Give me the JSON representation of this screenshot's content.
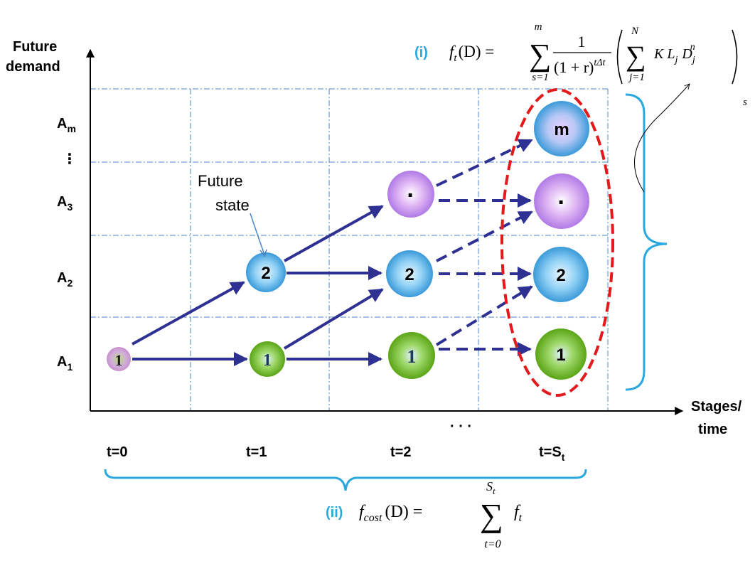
{
  "y_axis": {
    "label_line1": "Future",
    "label_line2": "demand"
  },
  "x_axis": {
    "label_line1": "Stages/",
    "label_line2": "time"
  },
  "demand_levels": [
    {
      "base": "A",
      "sub": "m"
    },
    {
      "dots": "⋮"
    },
    {
      "base": "A",
      "sub": "3"
    },
    {
      "base": "A",
      "sub": "2"
    },
    {
      "base": "A",
      "sub": "1"
    }
  ],
  "stages": [
    {
      "base": "t=0"
    },
    {
      "base": "t=1"
    },
    {
      "base": "t=2"
    },
    {
      "dots": "·   ·   ·"
    },
    {
      "base": "t=S",
      "sub": "t"
    }
  ],
  "nodes": [
    {
      "label": "1"
    },
    {
      "label": "2"
    },
    {
      "label": "1"
    },
    {
      "label": "·"
    },
    {
      "label": "2"
    },
    {
      "label": "1"
    },
    {
      "label": "m"
    },
    {
      "label": "·"
    },
    {
      "label": "2"
    },
    {
      "label": "1"
    }
  ],
  "annotation": {
    "line1": "Future",
    "line2": "state"
  },
  "formula_i": {
    "tag": "(i)",
    "lhs": "f",
    "lhs_sub": "t",
    "lhs_arg": "(D) =",
    "sum1_top": "m",
    "sum1_bottom": "s=1",
    "frac_num": "1",
    "frac_den": "(1 + r)",
    "frac_exp": "tΔt",
    "sum2_top": "N",
    "sum2_bottom": "j=1",
    "term": "K L",
    "term_sub1": "j",
    "term_d": "D",
    "term_sub2": "j",
    "term_sup": "n",
    "outer_sub": "s"
  },
  "formula_ii": {
    "tag": "(ii)",
    "lhs": "f",
    "lhs_sub": "cost",
    "lhs_arg": "(D) =",
    "sum_top": "S",
    "sum_top_sub": "t",
    "sum_bottom": "t=0",
    "rhs": "f",
    "rhs_sub": "t"
  },
  "colors": {
    "grid": "#4a86c5",
    "axis": "#000000",
    "arrow": "#2e3192",
    "ellipse": "#e3191b",
    "brace": "#29a9e0",
    "tag": "#29a9e0",
    "node_blue": "#3a9ad9",
    "node_green": "#6db31e",
    "node_violet": "#b07ae6",
    "node_pink": "#d9a6d9"
  }
}
